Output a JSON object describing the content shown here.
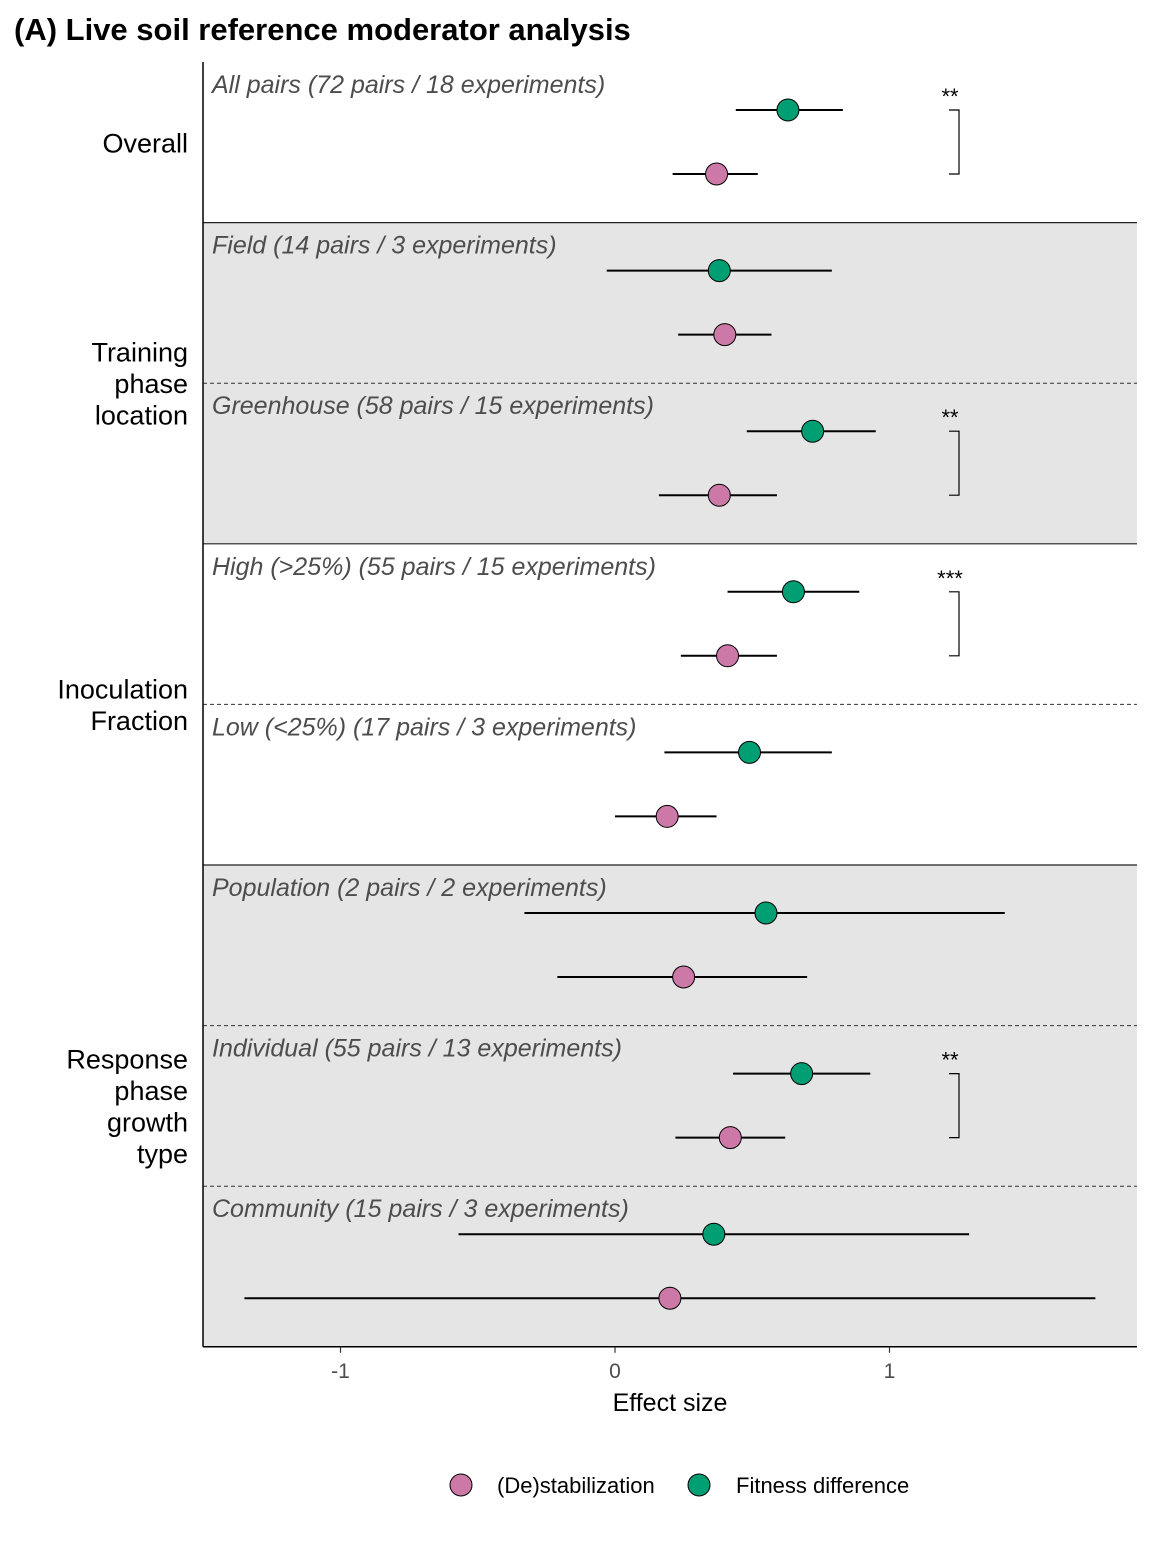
{
  "chart_data": {
    "type": "forest",
    "title": "(A) Live soil reference moderator analysis",
    "xlabel": "Effect size",
    "xlim": [
      -1.5,
      1.9
    ],
    "xticks": [
      -1,
      0,
      1
    ],
    "xtick_labels": [
      "-1",
      "0",
      "1"
    ],
    "legend_position": "bottom",
    "series": [
      {
        "name": "(De)stabilization",
        "key": "destab",
        "color": "#cc79a7"
      },
      {
        "name": "Fitness difference",
        "key": "fitness",
        "color": "#009e73"
      }
    ],
    "groups": [
      {
        "label": [
          "Overall"
        ],
        "shaded": false,
        "rows": [
          0
        ]
      },
      {
        "label": [
          "Training",
          "phase",
          "location"
        ],
        "shaded": true,
        "rows": [
          1,
          2
        ]
      },
      {
        "label": [
          "Inoculation",
          "Fraction"
        ],
        "shaded": false,
        "rows": [
          3,
          4
        ]
      },
      {
        "label": [
          "Response",
          "phase",
          "growth",
          "type"
        ],
        "shaded": true,
        "rows": [
          5,
          6,
          7
        ]
      }
    ],
    "rows": [
      {
        "label": "All pairs (72 pairs / 18 experiments)",
        "sig": "**",
        "fitness": {
          "est": 0.63,
          "lo": 0.44,
          "hi": 0.83
        },
        "destab": {
          "est": 0.37,
          "lo": 0.21,
          "hi": 0.52
        }
      },
      {
        "label": "Field (14 pairs / 3 experiments)",
        "sig": "",
        "fitness": {
          "est": 0.38,
          "lo": -0.03,
          "hi": 0.79
        },
        "destab": {
          "est": 0.4,
          "lo": 0.23,
          "hi": 0.57
        }
      },
      {
        "label": "Greenhouse (58 pairs / 15 experiments)",
        "sig": "**",
        "fitness": {
          "est": 0.72,
          "lo": 0.48,
          "hi": 0.95
        },
        "destab": {
          "est": 0.38,
          "lo": 0.16,
          "hi": 0.59
        }
      },
      {
        "label": "High (>25%) (55 pairs / 15 experiments)",
        "sig": "***",
        "fitness": {
          "est": 0.65,
          "lo": 0.41,
          "hi": 0.89
        },
        "destab": {
          "est": 0.41,
          "lo": 0.24,
          "hi": 0.59
        }
      },
      {
        "label": "Low (<25%) (17 pairs / 3 experiments)",
        "sig": "",
        "fitness": {
          "est": 0.49,
          "lo": 0.18,
          "hi": 0.79
        },
        "destab": {
          "est": 0.19,
          "lo": 0.0,
          "hi": 0.37
        }
      },
      {
        "label": "Population (2 pairs / 2 experiments)",
        "sig": "",
        "fitness": {
          "est": 0.55,
          "lo": -0.33,
          "hi": 1.42
        },
        "destab": {
          "est": 0.25,
          "lo": -0.21,
          "hi": 0.7
        }
      },
      {
        "label": "Individual (55 pairs / 13 experiments)",
        "sig": "**",
        "fitness": {
          "est": 0.68,
          "lo": 0.43,
          "hi": 0.93
        },
        "destab": {
          "est": 0.42,
          "lo": 0.22,
          "hi": 0.62
        }
      },
      {
        "label": "Community (15 pairs / 3 experiments)",
        "sig": "",
        "fitness": {
          "est": 0.36,
          "lo": -0.57,
          "hi": 1.29
        },
        "destab": {
          "est": 0.2,
          "lo": -1.35,
          "hi": 1.75
        }
      }
    ]
  }
}
